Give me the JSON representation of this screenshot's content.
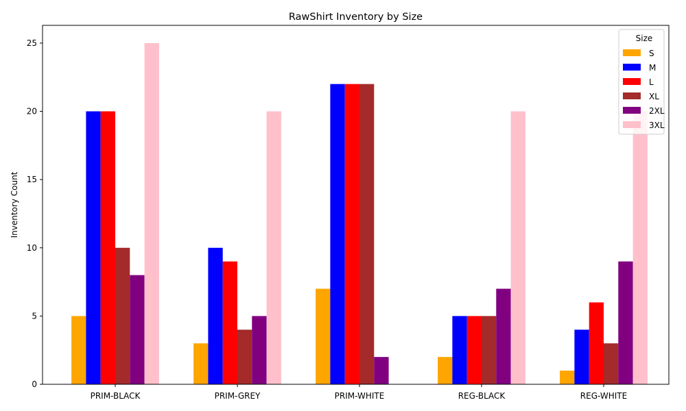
{
  "chart_data": {
    "type": "bar",
    "title": "RawShirt Inventory by Size",
    "xlabel": "",
    "ylabel": "Inventory Count",
    "categories": [
      "PRIM-BLACK",
      "PRIM-GREY",
      "PRIM-WHITE",
      "REG-BLACK",
      "REG-WHITE"
    ],
    "ylim": [
      0,
      26.3
    ],
    "yticks": [
      0,
      5,
      10,
      15,
      20,
      25
    ],
    "grid": false,
    "legend": {
      "title": "Size",
      "placement": "top-right"
    },
    "series": [
      {
        "name": "S",
        "color": "#ffa500",
        "values": [
          5,
          3,
          7,
          2,
          1
        ]
      },
      {
        "name": "M",
        "color": "#0000ff",
        "values": [
          20,
          10,
          22,
          5,
          4
        ]
      },
      {
        "name": "L",
        "color": "#ff0000",
        "values": [
          20,
          9,
          22,
          5,
          6
        ]
      },
      {
        "name": "XL",
        "color": "#a52a2a",
        "values": [
          10,
          4,
          22,
          5,
          3
        ]
      },
      {
        "name": "2XL",
        "color": "#800080",
        "values": [
          8,
          5,
          2,
          7,
          9
        ]
      },
      {
        "name": "3XL",
        "color": "#ffc0cb",
        "values": [
          25,
          20,
          0,
          20,
          20
        ]
      }
    ]
  }
}
